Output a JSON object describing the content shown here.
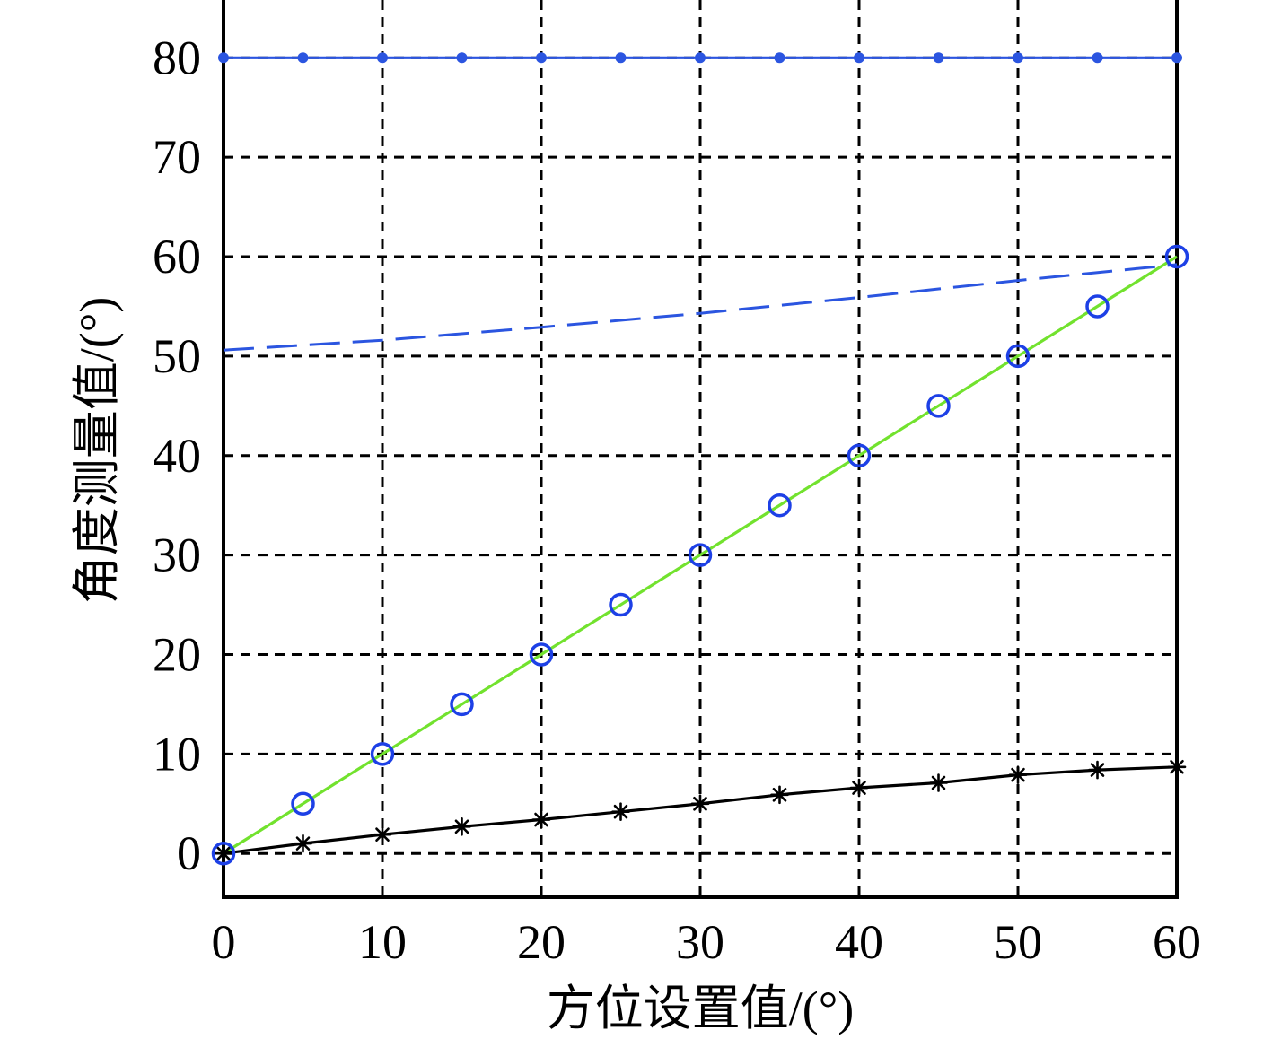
{
  "chart_data": {
    "type": "line",
    "xlabel": "方位设置值/(°)",
    "ylabel": "角度测量值/(°)",
    "xlim": [
      0,
      60
    ],
    "ylim": [
      -4.4,
      85.8
    ],
    "xticks": [
      0,
      10,
      20,
      30,
      40,
      50,
      60
    ],
    "yticks": [
      0,
      10,
      20,
      30,
      40,
      50,
      60,
      70,
      80
    ],
    "grid": true,
    "series": [
      {
        "line": "solid",
        "marker": "none",
        "color": "#72e22e",
        "x": [
          0,
          60
        ],
        "y": [
          0,
          60
        ]
      },
      {
        "line": "solid",
        "marker": "asterisk",
        "color": "#000000",
        "x": [
          0,
          5,
          10,
          15,
          20,
          25,
          30,
          35,
          40,
          45,
          50,
          55,
          60
        ],
        "y": [
          0,
          1.0,
          1.9,
          2.7,
          3.4,
          4.2,
          5.0,
          5.9,
          6.6,
          7.1,
          7.9,
          8.4,
          8.7
        ]
      },
      {
        "line": "dashed",
        "marker": "none",
        "color": "#2b55e0",
        "x": [
          0,
          10,
          20,
          30,
          40,
          50,
          60
        ],
        "y": [
          50.6,
          51.6,
          52.9,
          54.3,
          55.9,
          57.6,
          59.2
        ]
      },
      {
        "line": "solid",
        "marker": "dot",
        "color": "#2b55e0",
        "x": [
          0,
          5,
          10,
          15,
          20,
          25,
          30,
          35,
          40,
          45,
          50,
          55,
          60
        ],
        "y": [
          80,
          80,
          80,
          80,
          80,
          80,
          80,
          80,
          80,
          80,
          80,
          80,
          80
        ]
      },
      {
        "line": "none",
        "marker": "circle",
        "color": "#1d40e6",
        "x": [
          0,
          5,
          10,
          15,
          20,
          25,
          30,
          35,
          40,
          45,
          50,
          55,
          60
        ],
        "y": [
          0,
          5,
          10,
          15,
          20,
          25,
          30,
          35,
          40,
          45,
          50,
          55,
          60
        ]
      }
    ]
  }
}
